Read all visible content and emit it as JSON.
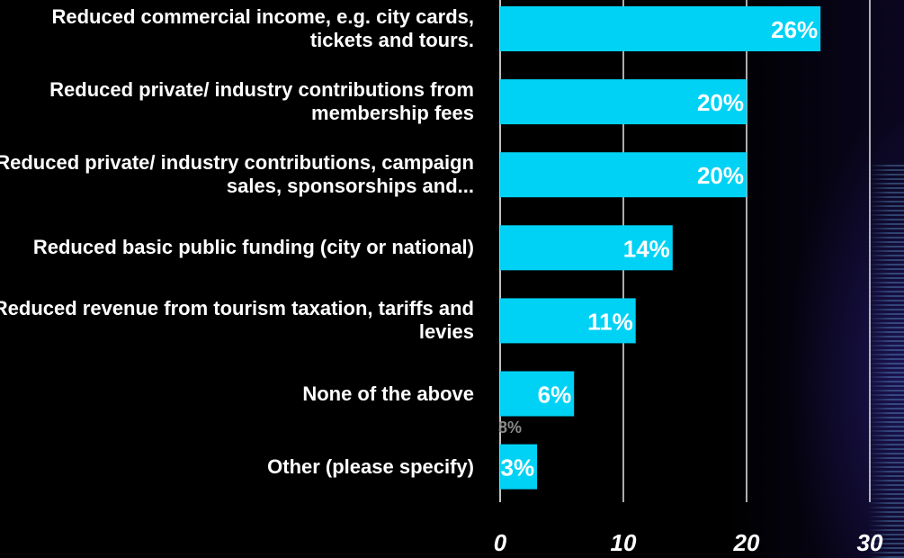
{
  "chart_data": {
    "type": "bar",
    "orientation": "horizontal",
    "categories": [
      "Reduced commercial income, e.g. city cards, tickets and tours.",
      "Reduced private/ industry contributions from membership fees",
      "Reduced private/ industry contributions, campaign sales, sponsorships and...",
      "Reduced basic public funding (city or national)",
      "Reduced revenue from tourism taxation, tariffs and levies",
      "None of the above",
      "Other (please specify)"
    ],
    "values": [
      26,
      20,
      20,
      14,
      11,
      6,
      3
    ],
    "data_labels": [
      "26%",
      "20%",
      "20%",
      "14%",
      "11%",
      "6%",
      "3%"
    ],
    "faint_annotation": "8%",
    "x_ticks": [
      "0",
      "10",
      "20",
      "30"
    ],
    "xlim": [
      0,
      32
    ],
    "grid": true,
    "colors": {
      "bar": "#00d2f5",
      "text": "#ffffff",
      "background": "#000000"
    }
  }
}
